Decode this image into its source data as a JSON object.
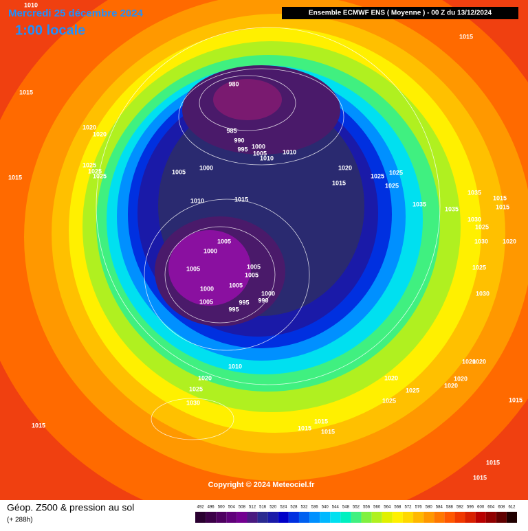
{
  "header": {
    "date": "Mercredi 25 décembre 2024",
    "time": "1:00 locale",
    "model": "Ensemble ECMWF ENS  ( Moyenne )  -  00 Z du 13/12/2024"
  },
  "footer": {
    "copyright": "Copyright © 2024 Meteociel.fr",
    "field": "Géop. Z500 & pression au sol",
    "lead": "(+ 288h)"
  },
  "scale": {
    "values": [
      492,
      496,
      500,
      504,
      508,
      512,
      516,
      520,
      524,
      528,
      532,
      536,
      540,
      544,
      548,
      552,
      556,
      560,
      564,
      568,
      572,
      576,
      580,
      584,
      588,
      592,
      596,
      600,
      604,
      608,
      612
    ],
    "colors": [
      "#2a0030",
      "#3c0048",
      "#4e0060",
      "#60007a",
      "#720090",
      "#4a1a80",
      "#2a2a90",
      "#1a1aa8",
      "#0000c8",
      "#0030e0",
      "#0060f0",
      "#0090ff",
      "#00b8ff",
      "#00e0f0",
      "#00f0c0",
      "#40f080",
      "#80f040",
      "#b0f020",
      "#e0f000",
      "#fff000",
      "#ffd800",
      "#ffb800",
      "#ff9800",
      "#ff7800",
      "#ff5800",
      "#f03800",
      "#d82000",
      "#b80000",
      "#900000",
      "#600000",
      "#200000"
    ]
  },
  "isobar_labels": [
    "1010",
    "1015",
    "1015",
    "1020",
    "1020",
    "1025",
    "1025",
    "1025",
    "1015",
    "1005",
    "1000",
    "980",
    "985",
    "990",
    "995",
    "1000",
    "1005",
    "1010",
    "1010",
    "1020",
    "1015",
    "1025",
    "1025",
    "1025",
    "1010",
    "1015",
    "1035",
    "1015",
    "1015",
    "1035",
    "1035",
    "1030",
    "1025",
    "1005",
    "1000",
    "1005",
    "1005",
    "1005",
    "1000",
    "1005",
    "1005",
    "995",
    "990",
    "995",
    "1000",
    "1020",
    "1030",
    "1025",
    "1030",
    "1020",
    "1020",
    "1010",
    "1020",
    "1025",
    "1030",
    "1020",
    "1020",
    "1020",
    "1025",
    "1025",
    "1015",
    "1015",
    "1015",
    "1015",
    "1015",
    "1015",
    "1015"
  ]
}
